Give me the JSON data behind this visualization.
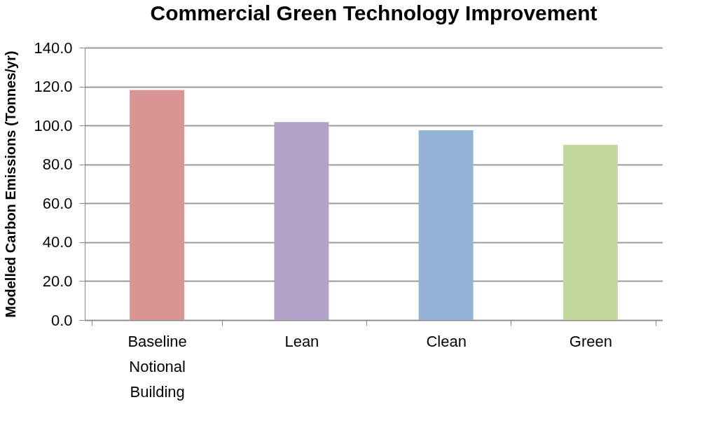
{
  "chart_data": {
    "type": "bar",
    "title": "Commercial  Green Technology  Improvement",
    "ylabel": "Modelled Carbon Emissions (Tonnes/yr)",
    "categories": [
      "Baseline Notional Building",
      "Lean",
      "Clean",
      "Green"
    ],
    "values": [
      118.2,
      101.8,
      97.5,
      90.1
    ],
    "colors": [
      "#d99594",
      "#b3a2c7",
      "#95b3d7",
      "#c3d69b"
    ],
    "ylim": [
      0,
      140
    ],
    "yticks": [
      {
        "value": 0,
        "label": "0.0"
      },
      {
        "value": 20,
        "label": "20.0"
      },
      {
        "value": 40,
        "label": "40.0"
      },
      {
        "value": 60,
        "label": "60.0"
      },
      {
        "value": 80,
        "label": "80.0"
      },
      {
        "value": 100,
        "label": "100.0"
      },
      {
        "value": 120,
        "label": "120.0"
      },
      {
        "value": 140,
        "label": "140.0"
      }
    ],
    "grid": "y",
    "legend": false
  }
}
